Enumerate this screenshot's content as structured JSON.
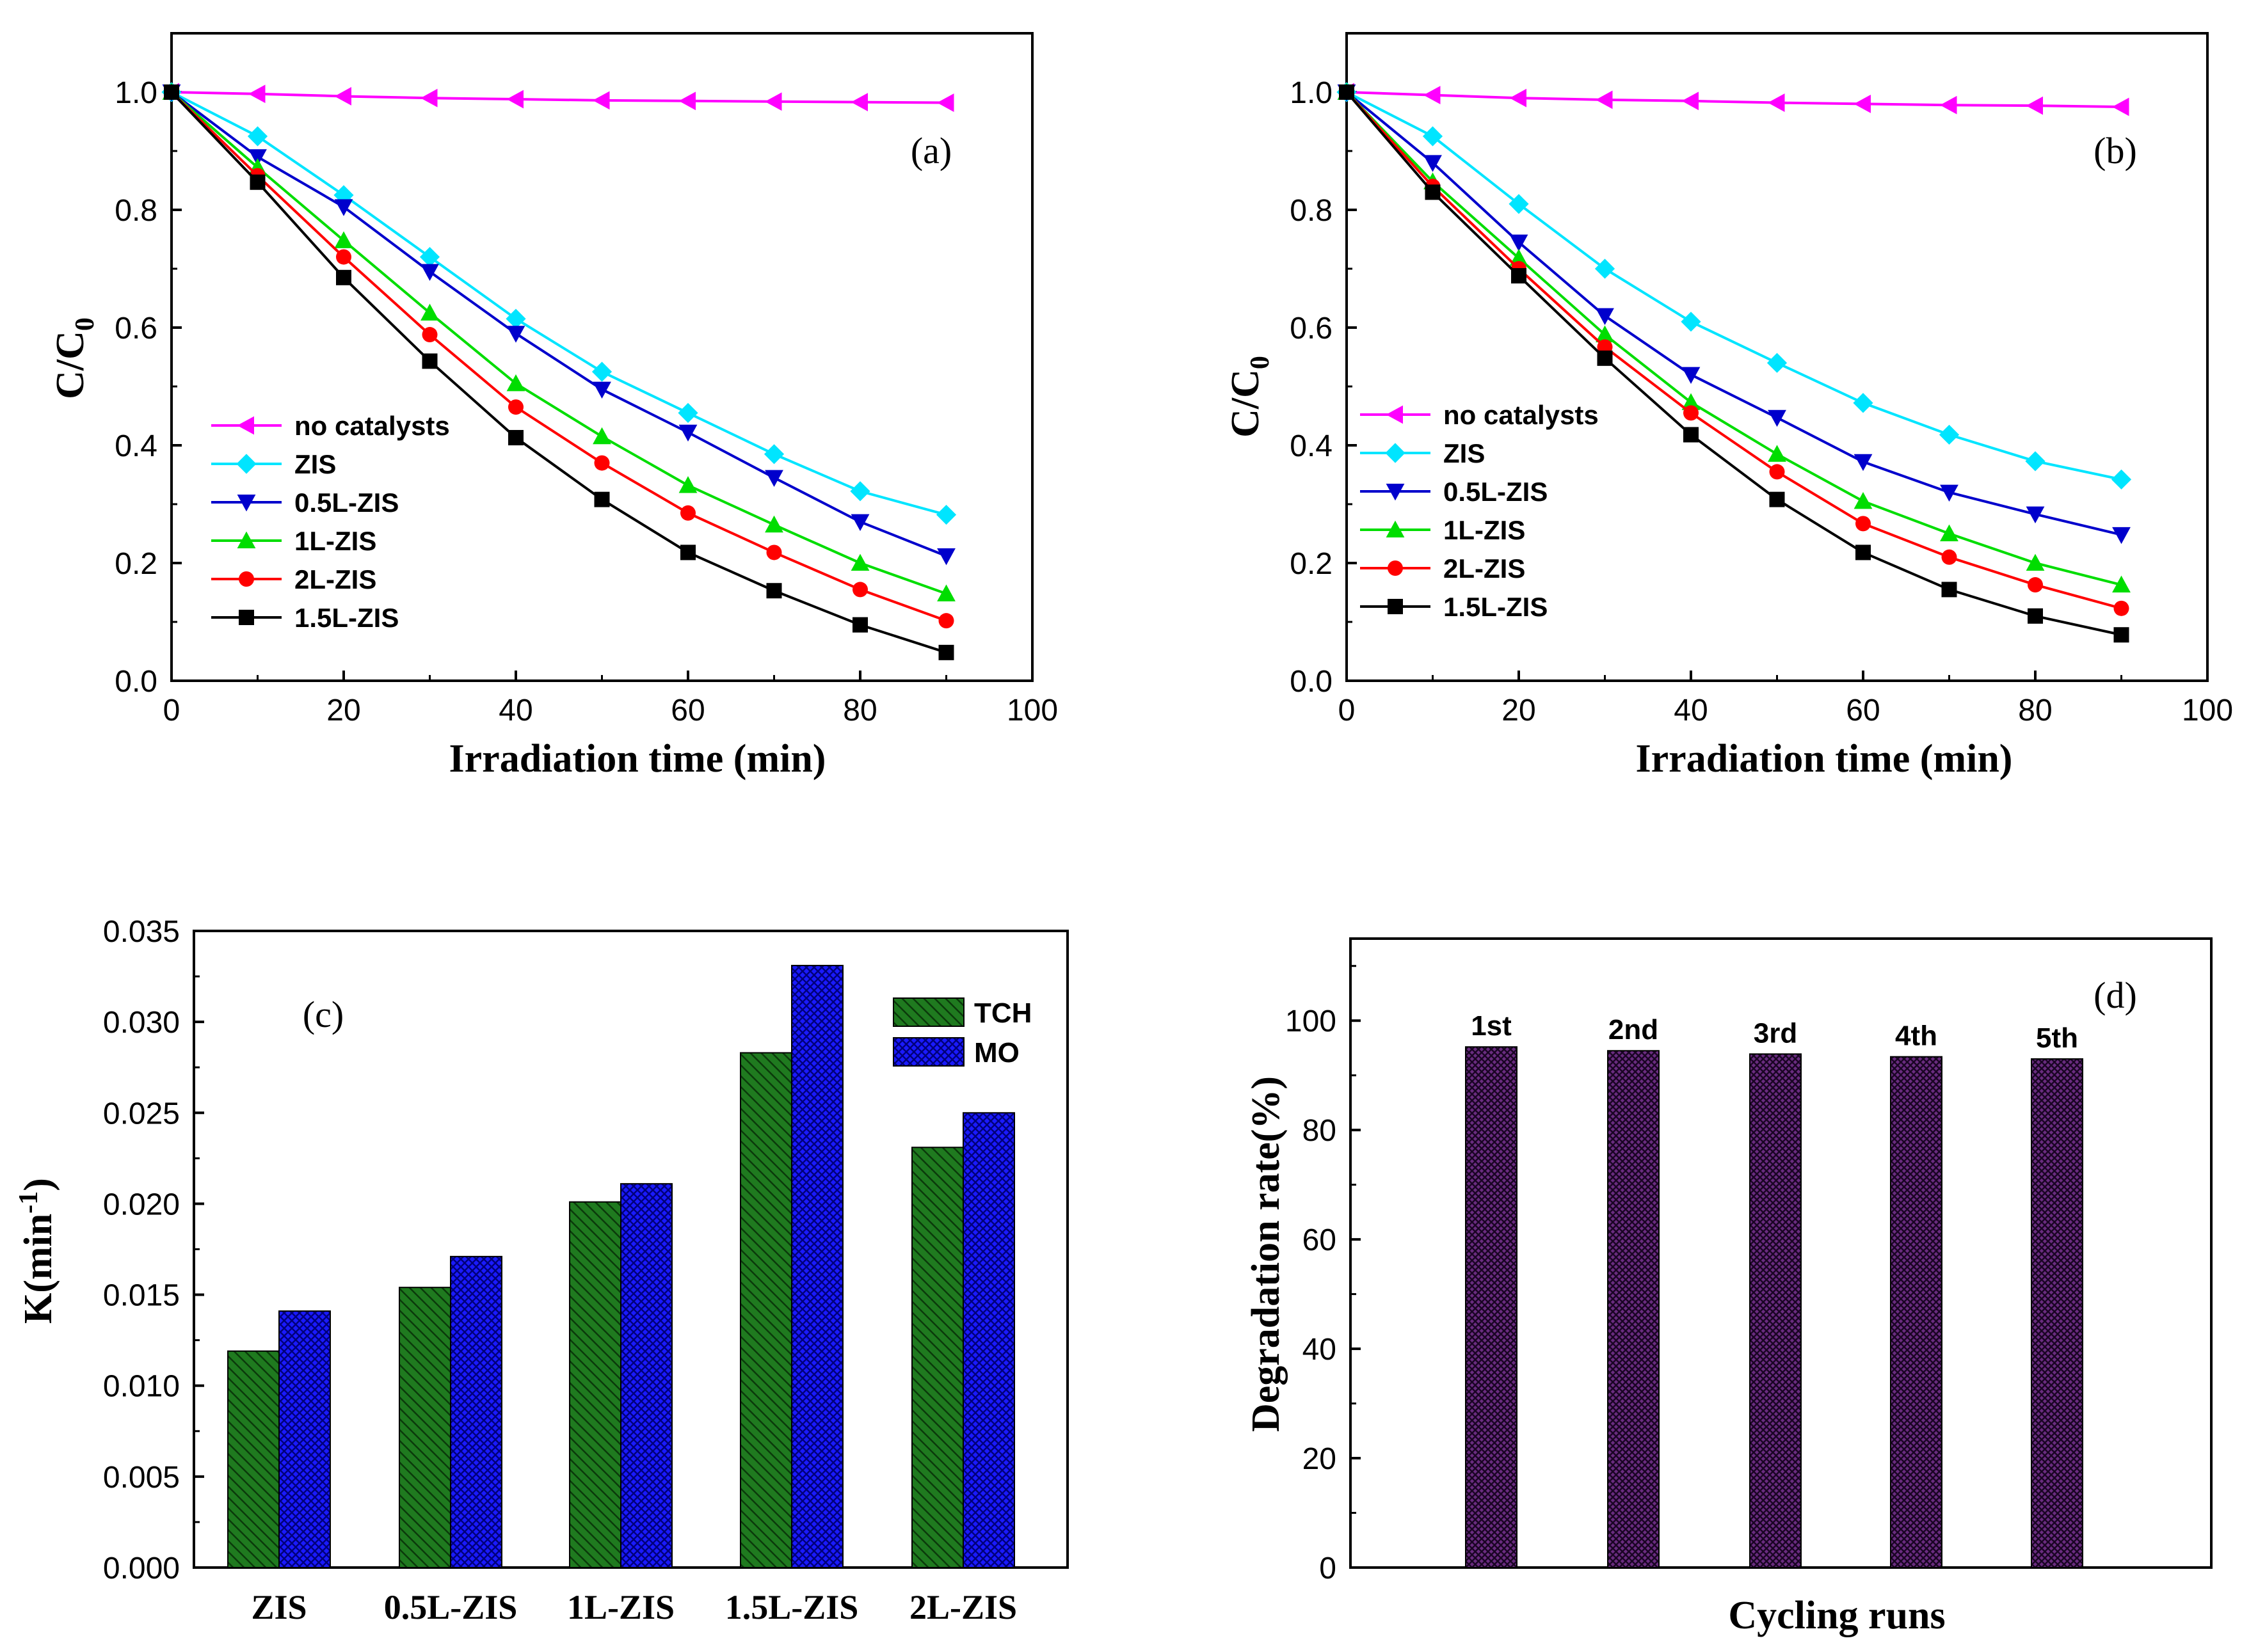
{
  "chart_data": [
    {
      "id": "a",
      "type": "line",
      "panel_label": "(a)",
      "xlabel": "Irradiation time (min)",
      "ylabel_main": "C/C",
      "ylabel_sub": "0",
      "xlim": [
        0,
        100
      ],
      "ylim": [
        0,
        1.1
      ],
      "xticks": [
        0,
        20,
        40,
        60,
        80,
        100
      ],
      "yticks": [
        0.0,
        0.2,
        0.4,
        0.6,
        0.8,
        1.0
      ],
      "xtick_labels": [
        "0",
        "20",
        "40",
        "60",
        "80",
        "100"
      ],
      "ytick_labels": [
        "0.0",
        "0.2",
        "0.4",
        "0.6",
        "0.8",
        "1.0"
      ],
      "legend_position": "lower-left",
      "x": [
        0,
        10,
        20,
        30,
        40,
        50,
        60,
        70,
        80,
        90
      ],
      "series": [
        {
          "name": "no catalysts",
          "color": "#ff00ff",
          "marker": "triangle-left",
          "values": [
            1.0,
            0.997,
            0.993,
            0.99,
            0.988,
            0.986,
            0.985,
            0.984,
            0.983,
            0.982
          ]
        },
        {
          "name": "ZIS",
          "color": "#00e5ff",
          "marker": "diamond",
          "values": [
            1.0,
            0.925,
            0.825,
            0.72,
            0.615,
            0.525,
            0.455,
            0.385,
            0.322,
            0.282
          ]
        },
        {
          "name": "0.5L-ZIS",
          "color": "#0000cc",
          "marker": "triangle-down",
          "values": [
            1.0,
            0.89,
            0.805,
            0.695,
            0.59,
            0.495,
            0.422,
            0.345,
            0.27,
            0.212
          ]
        },
        {
          "name": "1L-ZIS",
          "color": "#00dd00",
          "marker": "triangle-up",
          "values": [
            1.0,
            0.872,
            0.748,
            0.625,
            0.505,
            0.415,
            0.332,
            0.265,
            0.2,
            0.148
          ]
        },
        {
          "name": "2L-ZIS",
          "color": "#ff0000",
          "marker": "circle",
          "values": [
            1.0,
            0.858,
            0.72,
            0.588,
            0.465,
            0.37,
            0.285,
            0.218,
            0.155,
            0.102
          ]
        },
        {
          "name": "1.5L-ZIS",
          "color": "#000000",
          "marker": "square",
          "values": [
            1.0,
            0.847,
            0.685,
            0.543,
            0.413,
            0.308,
            0.218,
            0.153,
            0.095,
            0.048
          ]
        }
      ]
    },
    {
      "id": "b",
      "type": "line",
      "panel_label": "(b)",
      "xlabel": "Irradiation time (min)",
      "ylabel_main": "C/C",
      "ylabel_sub": "0",
      "xlim": [
        0,
        100
      ],
      "ylim": [
        0,
        1.1
      ],
      "xticks": [
        0,
        20,
        40,
        60,
        80,
        100
      ],
      "yticks": [
        0.0,
        0.2,
        0.4,
        0.6,
        0.8,
        1.0
      ],
      "xtick_labels": [
        "0",
        "20",
        "40",
        "60",
        "80",
        "100"
      ],
      "ytick_labels": [
        "0.0",
        "0.2",
        "0.4",
        "0.6",
        "0.8",
        "1.0"
      ],
      "legend_position": "lower-left",
      "x": [
        0,
        10,
        20,
        30,
        40,
        50,
        60,
        70,
        80,
        90
      ],
      "series": [
        {
          "name": "no catalysts",
          "color": "#ff00ff",
          "marker": "triangle-left",
          "values": [
            1.0,
            0.995,
            0.99,
            0.987,
            0.985,
            0.982,
            0.98,
            0.978,
            0.977,
            0.975
          ]
        },
        {
          "name": "ZIS",
          "color": "#00e5ff",
          "marker": "diamond",
          "values": [
            1.0,
            0.925,
            0.81,
            0.7,
            0.61,
            0.54,
            0.472,
            0.418,
            0.373,
            0.342
          ]
        },
        {
          "name": "0.5L-ZIS",
          "color": "#0000cc",
          "marker": "triangle-down",
          "values": [
            1.0,
            0.88,
            0.745,
            0.62,
            0.52,
            0.447,
            0.372,
            0.32,
            0.283,
            0.248
          ]
        },
        {
          "name": "1L-ZIS",
          "color": "#00dd00",
          "marker": "triangle-up",
          "values": [
            1.0,
            0.848,
            0.718,
            0.588,
            0.473,
            0.385,
            0.305,
            0.25,
            0.2,
            0.163
          ]
        },
        {
          "name": "2L-ZIS",
          "color": "#ff0000",
          "marker": "circle",
          "values": [
            1.0,
            0.84,
            0.7,
            0.567,
            0.455,
            0.355,
            0.267,
            0.21,
            0.163,
            0.123
          ]
        },
        {
          "name": "1.5L-ZIS",
          "color": "#000000",
          "marker": "square",
          "values": [
            1.0,
            0.83,
            0.688,
            0.548,
            0.418,
            0.308,
            0.218,
            0.155,
            0.11,
            0.078
          ]
        }
      ]
    },
    {
      "id": "c",
      "type": "bar",
      "panel_label": "(c)",
      "xlabel": "",
      "ylabel_main": "K(min",
      "ylabel_sup": "-1",
      "ylabel_close": ")",
      "ylim": [
        0,
        0.035
      ],
      "yticks": [
        0.0,
        0.005,
        0.01,
        0.015,
        0.02,
        0.025,
        0.03,
        0.035
      ],
      "ytick_labels": [
        "0.000",
        "0.005",
        "0.010",
        "0.015",
        "0.020",
        "0.025",
        "0.030",
        "0.035"
      ],
      "legend_position": "top-right",
      "categories": [
        "ZIS",
        "0.5L-ZIS",
        "1L-ZIS",
        "1.5L-ZIS",
        "2L-ZIS"
      ],
      "series": [
        {
          "name": "TCH",
          "color": "#1f7a1f",
          "values": [
            0.0119,
            0.0154,
            0.0201,
            0.0283,
            0.0231
          ]
        },
        {
          "name": "MO",
          "color": "#1a1aff",
          "values": [
            0.0141,
            0.0171,
            0.0211,
            0.0331,
            0.025
          ]
        }
      ]
    },
    {
      "id": "d",
      "type": "bar",
      "panel_label": "(d)",
      "xlabel": "Cycling runs",
      "ylabel": "Degradation rate(%)",
      "ylim": [
        0,
        115
      ],
      "yticks": [
        0,
        20,
        40,
        60,
        80,
        100
      ],
      "ytick_labels": [
        "0",
        "20",
        "40",
        "60",
        "80",
        "100"
      ],
      "categories": [
        "1st",
        "2nd",
        "3rd",
        "4th",
        "5th"
      ],
      "values": [
        95.2,
        94.5,
        93.9,
        93.4,
        93.0
      ],
      "color": "#4b1560"
    }
  ]
}
